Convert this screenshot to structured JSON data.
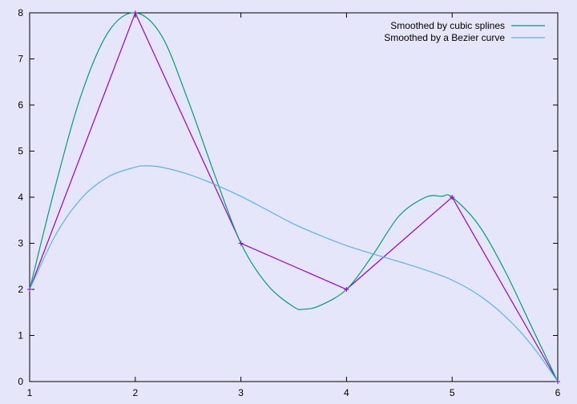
{
  "chart_data": {
    "type": "line",
    "title": "",
    "xlabel": "",
    "ylabel": "",
    "xlim": [
      1,
      6
    ],
    "ylim": [
      0,
      8
    ],
    "x_ticks": [
      1,
      2,
      3,
      4,
      5,
      6
    ],
    "y_ticks": [
      0,
      1,
      2,
      3,
      4,
      5,
      6,
      7,
      8
    ],
    "grid": false,
    "legend_position": "top-right",
    "colors": {
      "background": "#e6e6fa",
      "data": "#9400d3",
      "cubic": "#009e73",
      "bezier": "#56b4e9",
      "axis": "#000000"
    },
    "data_points": {
      "x": [
        1,
        2,
        3,
        4,
        5,
        6
      ],
      "y": [
        2,
        8,
        3,
        2,
        4,
        0
      ]
    },
    "series": [
      {
        "name": "Smoothed by cubic splines",
        "x": [
          1,
          1.25,
          1.5,
          1.75,
          2,
          2.25,
          2.5,
          2.75,
          3,
          3.25,
          3.5,
          3.6,
          3.75,
          4,
          4.25,
          4.5,
          4.75,
          4.9,
          5,
          5.25,
          5.5,
          5.75,
          6
        ],
        "y": [
          2,
          4.3,
          6.3,
          7.6,
          8,
          7.5,
          6.1,
          4.5,
          3,
          2.1,
          1.62,
          1.57,
          1.65,
          2,
          2.75,
          3.6,
          4,
          4.02,
          4,
          3.4,
          2.4,
          1.2,
          0
        ]
      },
      {
        "name": "Smoothed by a Bezier curve",
        "x": [
          1,
          1.25,
          1.5,
          1.75,
          2,
          2.1,
          2.25,
          2.5,
          2.75,
          3,
          3.25,
          3.5,
          3.75,
          4,
          4.25,
          4.5,
          4.75,
          5,
          5.25,
          5.5,
          5.75,
          6
        ],
        "y": [
          2,
          3.2,
          4.0,
          4.45,
          4.65,
          4.68,
          4.65,
          4.5,
          4.28,
          4.02,
          3.72,
          3.42,
          3.17,
          2.95,
          2.77,
          2.6,
          2.42,
          2.2,
          1.88,
          1.42,
          0.8,
          0
        ]
      }
    ]
  }
}
